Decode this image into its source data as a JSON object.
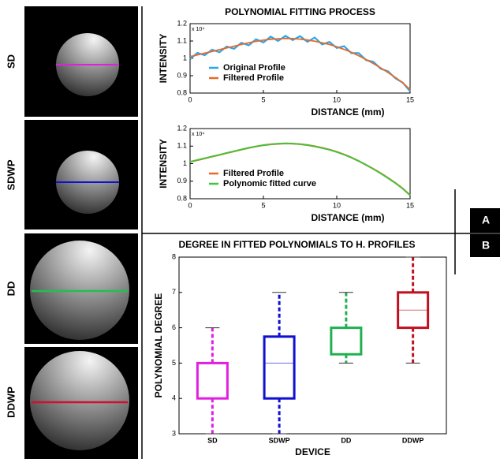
{
  "row_labels": [
    "SD",
    "SDWP",
    "DD",
    "DDWP"
  ],
  "panel_tabs": [
    "A",
    "B"
  ],
  "chart_data": [
    {
      "type": "line",
      "title": "POLYNOMIAL FITTING PROCESS",
      "x_label": "DISTANCE (mm)",
      "y_label": "INTENSITY",
      "y_scale_label": "x 10⁴",
      "x": [
        0,
        0.5,
        1,
        1.5,
        2,
        2.5,
        3,
        3.5,
        4,
        4.5,
        5,
        5.5,
        6,
        6.5,
        7,
        7.5,
        8,
        8.5,
        9,
        9.5,
        10,
        10.5,
        11,
        11.5,
        12,
        12.5,
        13,
        13.5,
        14,
        14.5,
        15
      ],
      "series": [
        {
          "name": "Original Profile",
          "color": "#2aa7e8",
          "values": [
            0.995,
            1.032,
            1.018,
            1.05,
            1.035,
            1.068,
            1.055,
            1.09,
            1.075,
            1.11,
            1.092,
            1.125,
            1.1,
            1.13,
            1.105,
            1.128,
            1.095,
            1.12,
            1.08,
            1.095,
            1.06,
            1.07,
            1.03,
            1.03,
            0.99,
            0.98,
            0.94,
            0.925,
            0.885,
            0.86,
            0.81
          ]
        },
        {
          "name": "Filtered Profile",
          "color": "#e8692a",
          "values": [
            1.01,
            1.02,
            1.03,
            1.04,
            1.05,
            1.06,
            1.07,
            1.08,
            1.09,
            1.098,
            1.105,
            1.11,
            1.113,
            1.115,
            1.114,
            1.111,
            1.106,
            1.099,
            1.09,
            1.08,
            1.067,
            1.052,
            1.035,
            1.015,
            0.993,
            0.97,
            0.945,
            0.918,
            0.89,
            0.858,
            0.82
          ]
        }
      ],
      "xlim": [
        0,
        15
      ],
      "xticks": [
        0,
        5,
        10,
        15
      ],
      "ylim": [
        0.8,
        1.2
      ],
      "yticks": [
        0.8,
        0.9,
        1,
        1.1,
        1.2
      ],
      "legend": "lower left",
      "grid": false
    },
    {
      "type": "line",
      "x_label": "DISTANCE (mm)",
      "y_label": "INTENSITY",
      "y_scale_label": "x 10⁴",
      "x": [
        0,
        0.5,
        1,
        1.5,
        2,
        2.5,
        3,
        3.5,
        4,
        4.5,
        5,
        5.5,
        6,
        6.5,
        7,
        7.5,
        8,
        8.5,
        9,
        9.5,
        10,
        10.5,
        11,
        11.5,
        12,
        12.5,
        13,
        13.5,
        14,
        14.5,
        15
      ],
      "series": [
        {
          "name": "Filtered Profile",
          "color": "#e8692a",
          "values": [
            1.01,
            1.02,
            1.03,
            1.04,
            1.05,
            1.06,
            1.07,
            1.08,
            1.09,
            1.098,
            1.105,
            1.11,
            1.113,
            1.115,
            1.114,
            1.111,
            1.106,
            1.099,
            1.09,
            1.08,
            1.067,
            1.052,
            1.035,
            1.015,
            0.993,
            0.97,
            0.945,
            0.918,
            0.89,
            0.858,
            0.82
          ]
        },
        {
          "name": "Polynomic fitted curve",
          "color": "#3cc83c",
          "values": [
            1.011,
            1.021,
            1.031,
            1.041,
            1.051,
            1.061,
            1.071,
            1.081,
            1.09,
            1.098,
            1.105,
            1.11,
            1.114,
            1.115,
            1.114,
            1.111,
            1.105,
            1.098,
            1.089,
            1.079,
            1.066,
            1.051,
            1.034,
            1.015,
            0.993,
            0.969,
            0.944,
            0.917,
            0.889,
            0.857,
            0.821
          ]
        }
      ],
      "xlim": [
        0,
        15
      ],
      "xticks": [
        0,
        5,
        10,
        15
      ],
      "ylim": [
        0.8,
        1.2
      ],
      "yticks": [
        0.8,
        0.9,
        1,
        1.1,
        1.2
      ],
      "legend": "lower left",
      "grid": false
    },
    {
      "type": "box",
      "title": "DEGREE IN FITTED POLYNOMIALS TO H. PROFILES",
      "x_label": "DEVICE",
      "y_label": "POLYNOMIAL DEGREE",
      "categories": [
        "SD",
        "SDWP",
        "DD",
        "DDWP"
      ],
      "boxes": [
        {
          "min": 3,
          "q1": 4,
          "median": 5,
          "q3": 5,
          "max": 6
        },
        {
          "min": 3,
          "q1": 4,
          "median": 5,
          "q3": 5.75,
          "max": 7
        },
        {
          "min": 5,
          "q1": 5.25,
          "median": 6,
          "q3": 6,
          "max": 7
        },
        {
          "min": 5,
          "q1": 6,
          "median": 6.5,
          "q3": 7,
          "max": 8
        }
      ],
      "colors": [
        "#e020e0",
        "#1010d0",
        "#20b050",
        "#c01020"
      ],
      "ylim": [
        3,
        8
      ],
      "yticks": [
        3,
        4,
        5,
        6,
        7,
        8
      ],
      "grid": false
    }
  ]
}
